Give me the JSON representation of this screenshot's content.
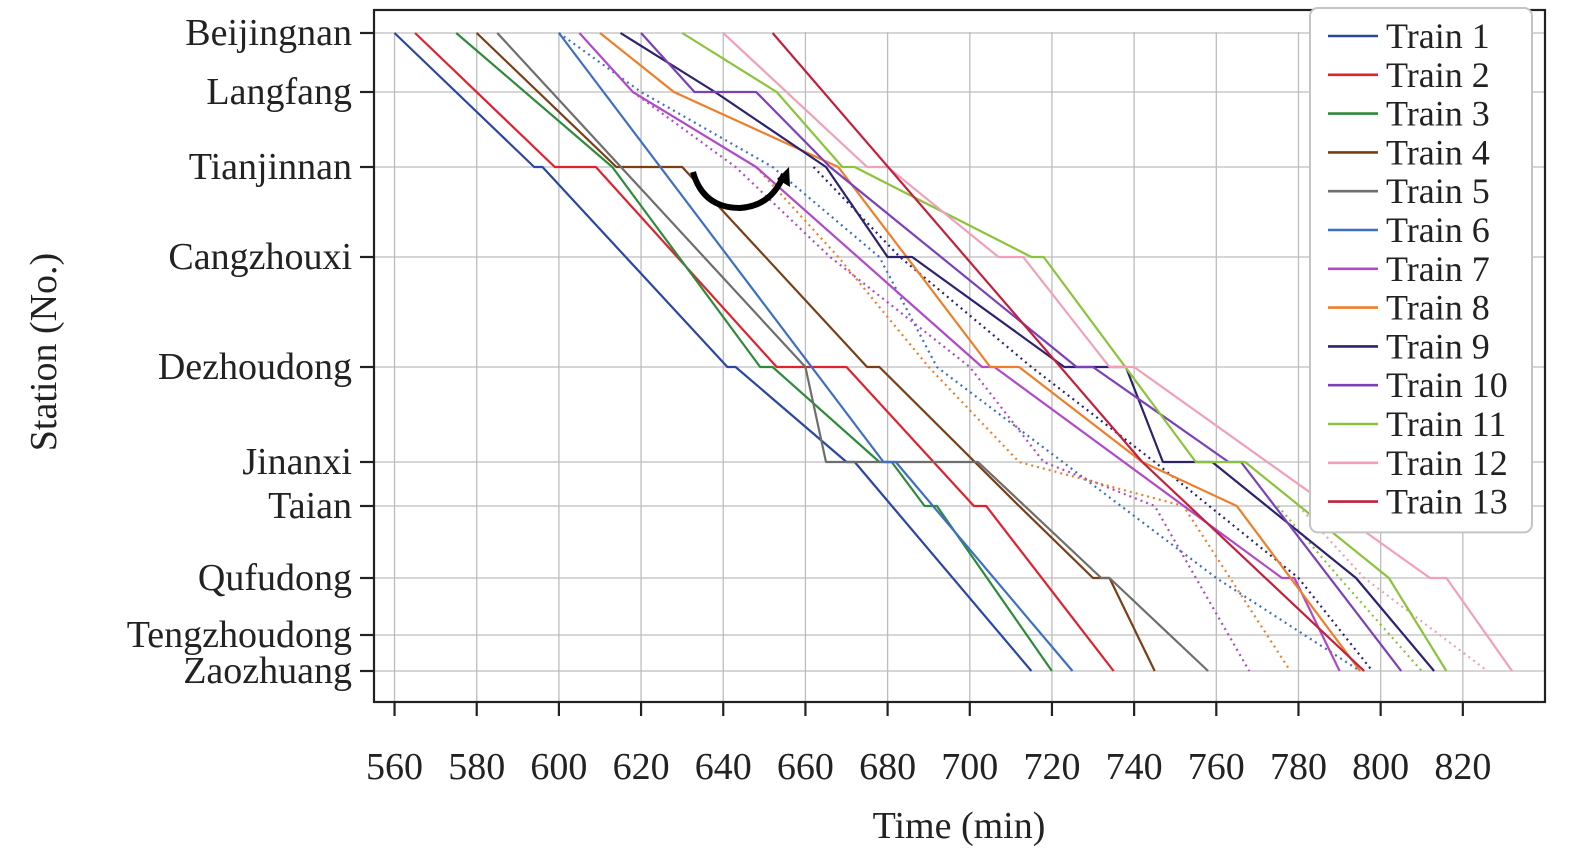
{
  "chart_data": {
    "type": "line",
    "title": "",
    "xlabel": "Time (min)",
    "ylabel": "Station (No.)",
    "xlim": [
      555,
      840
    ],
    "x_ticks": [
      560,
      580,
      600,
      620,
      640,
      660,
      680,
      700,
      720,
      740,
      760,
      780,
      800,
      820
    ],
    "grid": true,
    "legend_position": "top-right",
    "stations": [
      {
        "name": "Beijingnan",
        "pos": 0
      },
      {
        "name": "Langfang",
        "pos": 59
      },
      {
        "name": "Tianjinnan",
        "pos": 134
      },
      {
        "name": "Cangzhouxi",
        "pos": 224
      },
      {
        "name": "Dezhoudong",
        "pos": 334
      },
      {
        "name": "Jinanxi",
        "pos": 429
      },
      {
        "name": "Taian",
        "pos": 473
      },
      {
        "name": "Qufudong",
        "pos": 545
      },
      {
        "name": "Tengzhoudong",
        "pos": 602
      },
      {
        "name": "Zaozhuang",
        "pos": 638
      }
    ],
    "series": [
      {
        "name": "Train 1",
        "color": "#2b46a4",
        "points": [
          [
            560,
            0
          ],
          [
            594,
            134
          ],
          [
            596,
            134
          ],
          [
            641,
            334
          ],
          [
            643,
            334
          ],
          [
            670,
            429
          ],
          [
            672,
            429
          ],
          [
            715,
            638
          ]
        ]
      },
      {
        "name": "Train 2",
        "color": "#e0212e",
        "points": [
          [
            565,
            0
          ],
          [
            599,
            134
          ],
          [
            609,
            134
          ],
          [
            653,
            334
          ],
          [
            670,
            334
          ],
          [
            701,
            473
          ],
          [
            704,
            473
          ],
          [
            735,
            638
          ]
        ]
      },
      {
        "name": "Train 3",
        "color": "#2e8b3a",
        "points": [
          [
            575,
            0
          ],
          [
            613,
            134
          ],
          [
            649,
            334
          ],
          [
            652,
            334
          ],
          [
            678,
            429
          ],
          [
            681,
            429
          ],
          [
            689,
            473
          ],
          [
            692,
            473
          ],
          [
            720,
            638
          ]
        ]
      },
      {
        "name": "Train 4",
        "color": "#7b3f16",
        "points": [
          [
            580,
            0
          ],
          [
            614,
            134
          ],
          [
            630,
            134
          ],
          [
            675,
            334
          ],
          [
            678,
            334
          ],
          [
            712,
            473
          ],
          [
            730,
            545
          ],
          [
            734,
            545
          ],
          [
            745,
            638
          ]
        ]
      },
      {
        "name": "Train 5",
        "color": "#6e6e6e",
        "points": [
          [
            585,
            0
          ],
          [
            660,
            334
          ],
          [
            665,
            429
          ],
          [
            702,
            429
          ],
          [
            732,
            545
          ],
          [
            734,
            545
          ],
          [
            758,
            638
          ]
        ]
      },
      {
        "name": "Train 6",
        "color": "#3f6fc4",
        "points": [
          [
            600,
            0
          ],
          [
            679,
            429
          ],
          [
            682,
            429
          ],
          [
            725,
            638
          ]
        ]
      },
      {
        "name": "Train 7",
        "color": "#b04ac8",
        "points": [
          [
            605,
            0
          ],
          [
            618,
            59
          ],
          [
            648,
            134
          ],
          [
            703,
            334
          ],
          [
            706,
            334
          ],
          [
            776,
            545
          ],
          [
            779,
            545
          ],
          [
            790,
            638
          ]
        ]
      },
      {
        "name": "Train 8",
        "color": "#ef7e2a",
        "points": [
          [
            610,
            0
          ],
          [
            628,
            59
          ],
          [
            668,
            134
          ],
          [
            705,
            334
          ],
          [
            712,
            334
          ],
          [
            742,
            429
          ],
          [
            765,
            473
          ],
          [
            795,
            638
          ]
        ]
      },
      {
        "name": "Train 9",
        "color": "#2c2270",
        "points": [
          [
            615,
            0
          ],
          [
            638,
            59
          ],
          [
            665,
            134
          ],
          [
            680,
            224
          ],
          [
            686,
            224
          ],
          [
            723,
            334
          ],
          [
            738,
            334
          ],
          [
            747,
            429
          ],
          [
            759,
            429
          ],
          [
            794,
            545
          ],
          [
            813,
            638
          ]
        ]
      },
      {
        "name": "Train 10",
        "color": "#7c40b8",
        "points": [
          [
            620,
            0
          ],
          [
            633,
            59
          ],
          [
            648,
            59
          ],
          [
            666,
            134
          ],
          [
            726,
            334
          ],
          [
            730,
            334
          ],
          [
            763,
            429
          ],
          [
            766,
            429
          ],
          [
            805,
            638
          ]
        ]
      },
      {
        "name": "Train 11",
        "color": "#8ac43c",
        "points": [
          [
            630,
            0
          ],
          [
            653,
            59
          ],
          [
            669,
            134
          ],
          [
            672,
            134
          ],
          [
            715,
            224
          ],
          [
            718,
            224
          ],
          [
            755,
            429
          ],
          [
            767,
            429
          ],
          [
            802,
            545
          ],
          [
            816,
            638
          ]
        ]
      },
      {
        "name": "Train 12",
        "color": "#f2a0b8",
        "points": [
          [
            640,
            0
          ],
          [
            675,
            134
          ],
          [
            680,
            134
          ],
          [
            707,
            224
          ],
          [
            713,
            224
          ],
          [
            734,
            334
          ],
          [
            740,
            334
          ],
          [
            812,
            545
          ],
          [
            816,
            545
          ],
          [
            832,
            638
          ]
        ]
      },
      {
        "name": "Train 13",
        "color": "#c41f3b",
        "points": [
          [
            652,
            0
          ],
          [
            742,
            429
          ],
          [
            796,
            638
          ]
        ]
      }
    ],
    "dotted_series": [
      {
        "name": "Train 6",
        "color": "#3f6fc4",
        "points": [
          [
            600,
            0
          ],
          [
            620,
            59
          ],
          [
            652,
            134
          ],
          [
            678,
            224
          ],
          [
            692,
            334
          ],
          [
            760,
            545
          ],
          [
            795,
            638
          ]
        ]
      },
      {
        "name": "Train 7",
        "color": "#b04ac8",
        "points": [
          [
            618,
            59
          ],
          [
            643,
            134
          ],
          [
            666,
            224
          ],
          [
            700,
            334
          ],
          [
            718,
            429
          ],
          [
            745,
            473
          ],
          [
            768,
            638
          ]
        ]
      },
      {
        "name": "Train 8",
        "color": "#ef7e2a",
        "points": [
          [
            648,
            134
          ],
          [
            668,
            224
          ],
          [
            690,
            334
          ],
          [
            712,
            429
          ],
          [
            752,
            473
          ],
          [
            778,
            638
          ]
        ]
      },
      {
        "name": "Train 9",
        "color": "#2c2270",
        "points": [
          [
            662,
            134
          ],
          [
            683,
            224
          ],
          [
            715,
            334
          ],
          [
            745,
            429
          ],
          [
            780,
            545
          ],
          [
            798,
            638
          ]
        ]
      },
      {
        "name": "Train 11",
        "color": "#8ac43c",
        "points": [
          [
            775,
            473
          ],
          [
            790,
            545
          ],
          [
            810,
            638
          ]
        ]
      },
      {
        "name": "Train 12",
        "color": "#f2a0b8",
        "points": [
          [
            780,
            473
          ],
          [
            796,
            545
          ],
          [
            826,
            638
          ]
        ]
      }
    ]
  }
}
